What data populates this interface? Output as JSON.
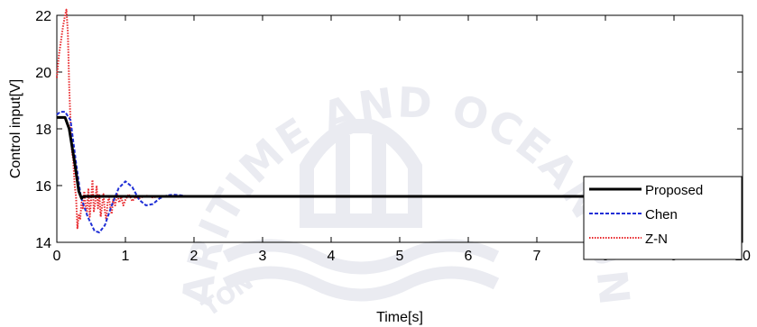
{
  "chart_data": {
    "type": "line",
    "title": "",
    "xlabel": "Time[s]",
    "ylabel": "Control input[V]",
    "xlim": [
      0,
      10
    ],
    "ylim": [
      14,
      22
    ],
    "xticks": [
      "0",
      "1",
      "2",
      "3",
      "4",
      "5",
      "6",
      "7",
      "8",
      "9",
      "10"
    ],
    "yticks": [
      "14",
      "16",
      "18",
      "20",
      "22"
    ],
    "grid": false,
    "legend_position": "bottom-right",
    "series": [
      {
        "name": "Proposed",
        "color": "#000000",
        "style": "solid",
        "x": [
          0,
          0.12,
          0.18,
          0.26,
          0.32,
          0.36,
          0.38,
          0.42,
          0.5,
          10
        ],
        "y": [
          18.4,
          18.4,
          18.0,
          16.8,
          15.8,
          15.55,
          15.6,
          15.62,
          15.62,
          15.62
        ]
      },
      {
        "name": "Chen",
        "color": "#1f2fd6",
        "style": "dashed",
        "x": [
          0,
          0.05,
          0.12,
          0.2,
          0.28,
          0.35,
          0.45,
          0.55,
          0.62,
          0.7,
          0.8,
          0.9,
          1.0,
          1.1,
          1.2,
          1.3,
          1.4,
          1.5,
          1.6,
          1.7,
          1.8,
          1.9,
          2.0,
          10
        ],
        "y": [
          18.5,
          18.6,
          18.6,
          18.3,
          16.8,
          15.6,
          14.9,
          14.4,
          14.35,
          14.6,
          15.3,
          15.9,
          16.15,
          15.95,
          15.5,
          15.3,
          15.35,
          15.55,
          15.65,
          15.68,
          15.66,
          15.63,
          15.62,
          15.62
        ]
      },
      {
        "name": "Z-N",
        "color": "#e8262a",
        "style": "dotted",
        "x": [
          0,
          0.03,
          0.06,
          0.09,
          0.12,
          0.14,
          0.16,
          0.18,
          0.2,
          0.22,
          0.24,
          0.26,
          0.28,
          0.3,
          0.32,
          0.34,
          0.36,
          0.38,
          0.4,
          0.42,
          0.44,
          0.46,
          0.48,
          0.5,
          0.52,
          0.54,
          0.56,
          0.58,
          0.6,
          0.62,
          0.64,
          0.66,
          0.68,
          0.7,
          0.72,
          0.74,
          0.76,
          0.78,
          0.8,
          0.82,
          0.85,
          0.88,
          0.91,
          0.94,
          0.97,
          1.0,
          1.05,
          1.1,
          1.15,
          1.2,
          1.3,
          1.4,
          1.5,
          1.6,
          1.8,
          2.0,
          10
        ],
        "y": [
          19.8,
          20.6,
          21.1,
          21.6,
          22.0,
          22.2,
          21.4,
          19.5,
          18.2,
          17.2,
          16.9,
          16.0,
          15.6,
          14.5,
          15.0,
          14.8,
          15.4,
          15.2,
          15.8,
          15.3,
          15.1,
          15.9,
          14.9,
          15.5,
          16.2,
          15.1,
          15.4,
          16.0,
          15.2,
          15.7,
          14.9,
          15.3,
          15.7,
          15.1,
          14.8,
          15.4,
          15.6,
          15.2,
          15.0,
          15.5,
          15.3,
          15.7,
          15.4,
          15.6,
          15.3,
          15.5,
          15.7,
          15.45,
          15.6,
          15.55,
          15.65,
          15.58,
          15.63,
          15.6,
          15.62,
          15.61,
          15.62
        ]
      }
    ]
  },
  "watermark": {
    "arc_text": "KOREA MARITIME AND OCEAN UNIVERSITY",
    "seal_text": "TON"
  }
}
